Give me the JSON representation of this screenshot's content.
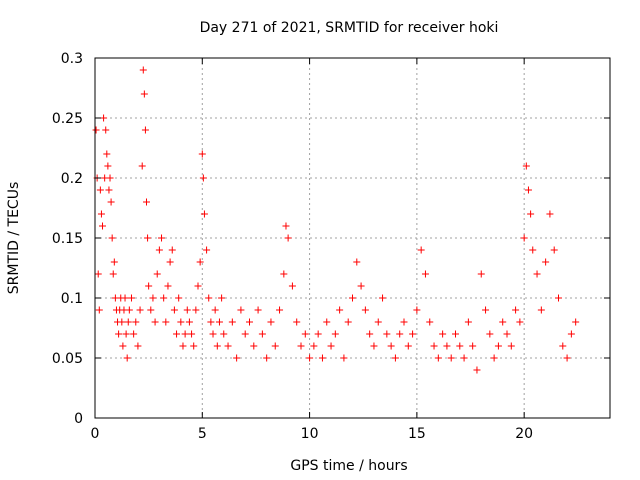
{
  "chart_data": {
    "type": "scatter",
    "title": "Day 271 of 2021, SRMTID for receiver hoki",
    "xlabel": "GPS time / hours",
    "ylabel": "SRMTID / TECUs",
    "xlim": [
      0,
      24
    ],
    "ylim": [
      0,
      0.3
    ],
    "x_ticks": [
      0,
      5,
      10,
      15,
      20
    ],
    "x_tick_labels": [
      "0",
      "5",
      "10",
      "15",
      "20"
    ],
    "y_ticks": [
      0,
      0.05,
      0.1,
      0.15,
      0.2,
      0.25,
      0.3
    ],
    "y_tick_labels": [
      "0",
      "0.05",
      "0.1",
      "0.15",
      "0.2",
      "0.25",
      "0.3"
    ],
    "grid": true,
    "marker": "+",
    "color": "#ff0000",
    "series": [
      {
        "name": "SRMTID",
        "x": [
          0.05,
          0.1,
          0.15,
          0.2,
          0.25,
          0.3,
          0.35,
          0.4,
          0.45,
          0.5,
          0.55,
          0.6,
          0.65,
          0.7,
          0.75,
          0.8,
          0.85,
          0.9,
          0.95,
          1.0,
          1.05,
          1.1,
          1.15,
          1.2,
          1.25,
          1.3,
          1.35,
          1.4,
          1.45,
          1.5,
          1.55,
          1.6,
          1.7,
          1.8,
          1.9,
          2.0,
          2.1,
          2.2,
          2.25,
          2.3,
          2.35,
          2.4,
          2.45,
          2.5,
          2.6,
          2.7,
          2.8,
          2.9,
          3.0,
          3.1,
          3.2,
          3.3,
          3.4,
          3.5,
          3.6,
          3.7,
          3.8,
          3.9,
          4.0,
          4.1,
          4.2,
          4.3,
          4.4,
          4.5,
          4.6,
          4.7,
          4.8,
          4.9,
          5.0,
          5.05,
          5.1,
          5.2,
          5.3,
          5.4,
          5.5,
          5.6,
          5.7,
          5.8,
          5.9,
          6.0,
          6.2,
          6.4,
          6.6,
          6.8,
          7.0,
          7.2,
          7.4,
          7.6,
          7.8,
          8.0,
          8.2,
          8.4,
          8.6,
          8.8,
          8.9,
          9.0,
          9.2,
          9.4,
          9.6,
          9.8,
          10.0,
          10.2,
          10.4,
          10.6,
          10.8,
          11.0,
          11.2,
          11.4,
          11.6,
          11.8,
          12.0,
          12.2,
          12.4,
          12.6,
          12.8,
          13.0,
          13.2,
          13.4,
          13.6,
          13.8,
          14.0,
          14.2,
          14.4,
          14.6,
          14.8,
          15.0,
          15.2,
          15.4,
          15.6,
          15.8,
          16.0,
          16.2,
          16.4,
          16.6,
          16.8,
          17.0,
          17.2,
          17.4,
          17.6,
          17.8,
          18.0,
          18.2,
          18.4,
          18.6,
          18.8,
          19.0,
          19.2,
          19.4,
          19.6,
          19.8,
          20.0,
          20.1,
          20.2,
          20.3,
          20.4,
          20.6,
          20.8,
          21.0,
          21.2,
          21.4,
          21.6,
          21.8,
          22.0,
          22.2,
          22.4
        ],
        "y": [
          0.24,
          0.2,
          0.12,
          0.09,
          0.19,
          0.17,
          0.16,
          0.25,
          0.2,
          0.24,
          0.22,
          0.21,
          0.19,
          0.2,
          0.18,
          0.15,
          0.12,
          0.13,
          0.1,
          0.09,
          0.08,
          0.07,
          0.09,
          0.1,
          0.08,
          0.06,
          0.09,
          0.1,
          0.07,
          0.05,
          0.08,
          0.09,
          0.1,
          0.07,
          0.08,
          0.06,
          0.09,
          0.21,
          0.29,
          0.27,
          0.24,
          0.18,
          0.15,
          0.11,
          0.09,
          0.1,
          0.08,
          0.12,
          0.14,
          0.15,
          0.1,
          0.08,
          0.11,
          0.13,
          0.14,
          0.09,
          0.07,
          0.1,
          0.08,
          0.06,
          0.07,
          0.09,
          0.08,
          0.07,
          0.06,
          0.09,
          0.11,
          0.13,
          0.22,
          0.2,
          0.17,
          0.14,
          0.1,
          0.08,
          0.07,
          0.09,
          0.06,
          0.08,
          0.1,
          0.07,
          0.06,
          0.08,
          0.05,
          0.09,
          0.07,
          0.08,
          0.06,
          0.09,
          0.07,
          0.05,
          0.08,
          0.06,
          0.09,
          0.12,
          0.16,
          0.15,
          0.11,
          0.08,
          0.06,
          0.07,
          0.05,
          0.06,
          0.07,
          0.05,
          0.08,
          0.06,
          0.07,
          0.09,
          0.05,
          0.08,
          0.1,
          0.13,
          0.11,
          0.09,
          0.07,
          0.06,
          0.08,
          0.1,
          0.07,
          0.06,
          0.05,
          0.07,
          0.08,
          0.06,
          0.07,
          0.09,
          0.14,
          0.12,
          0.08,
          0.06,
          0.05,
          0.07,
          0.06,
          0.05,
          0.07,
          0.06,
          0.05,
          0.08,
          0.06,
          0.04,
          0.12,
          0.09,
          0.07,
          0.05,
          0.06,
          0.08,
          0.07,
          0.06,
          0.09,
          0.08,
          0.15,
          0.21,
          0.19,
          0.17,
          0.14,
          0.12,
          0.09,
          0.13,
          0.17,
          0.14,
          0.1,
          0.06,
          0.05,
          0.07,
          0.08
        ]
      }
    ]
  }
}
